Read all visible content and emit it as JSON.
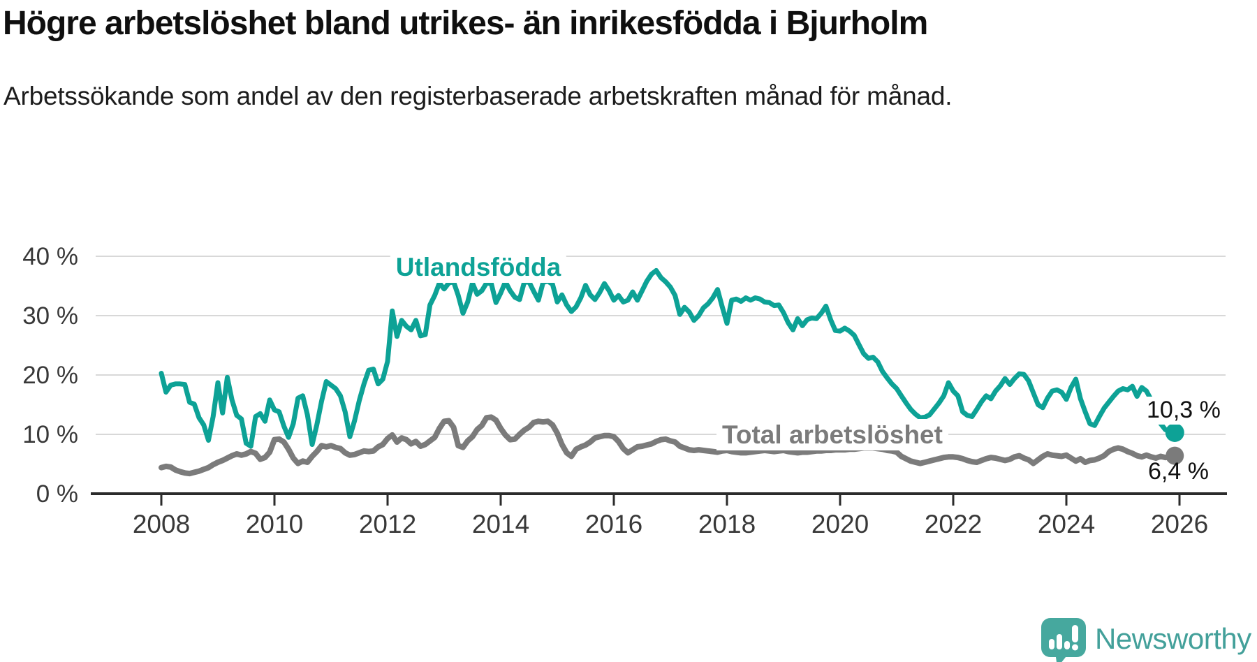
{
  "title": "Högre arbetslöshet bland utrikes- än inrikesfödda i Bjurholm",
  "subtitle": "Arbetssökande som andel av den registerbaserade arbetskraften månad för månad.",
  "logo": {
    "text": "Newsworthy"
  },
  "colors": {
    "teal": "#0da296",
    "gray": "#7b7b7b",
    "grid": "#d8d8d8",
    "axis": "#2b2b2b",
    "tick_text": "#383838",
    "title": "#0f0f0f",
    "subtitle": "#1c1c1c",
    "value_text": "#111111",
    "logo_teal": "#46a89e",
    "background": "#ffffff"
  },
  "chart_data": {
    "type": "line",
    "title": "Högre arbetslöshet bland utrikes- än inrikesfödda i Bjurholm",
    "subtitle": "Arbetssökande som andel av den registerbaserade arbetskraften månad för månad.",
    "xlabel": "",
    "ylabel": "",
    "xlim": [
      2006.8,
      2026.8
    ],
    "ylim": [
      0,
      42
    ],
    "grid": true,
    "legend": "inline-labels",
    "x_ticks": [
      {
        "value": 2008,
        "label": "2008"
      },
      {
        "value": 2010,
        "label": "2010"
      },
      {
        "value": 2012,
        "label": "2012"
      },
      {
        "value": 2014,
        "label": "2014"
      },
      {
        "value": 2016,
        "label": "2016"
      },
      {
        "value": 2018,
        "label": "2018"
      },
      {
        "value": 2020,
        "label": "2020"
      },
      {
        "value": 2022,
        "label": "2022"
      },
      {
        "value": 2024,
        "label": "2024"
      },
      {
        "value": 2026,
        "label": "2026"
      }
    ],
    "y_ticks": [
      {
        "value": 0,
        "label": "0 %"
      },
      {
        "value": 10,
        "label": "10 %"
      },
      {
        "value": 20,
        "label": "20 %"
      },
      {
        "value": 30,
        "label": "30 %"
      },
      {
        "value": 40,
        "label": "40 %"
      }
    ],
    "series": [
      {
        "name": "Utlandsfödda",
        "color": "#0da296",
        "end_label": "10,3 %",
        "end_value": 10.3,
        "start_year": 2008.0,
        "step_years": 0.083333,
        "values": [
          20.3,
          17.1,
          18.3,
          18.5,
          18.5,
          18.4,
          15.4,
          15.1,
          12.8,
          11.6,
          9.0,
          13.0,
          18.7,
          13.6,
          19.6,
          15.8,
          13.2,
          12.6,
          8.5,
          8.0,
          13.0,
          13.5,
          12.2,
          15.8,
          14.1,
          13.8,
          11.4,
          9.5,
          11.8,
          16.1,
          16.5,
          13.3,
          8.3,
          11.6,
          15.6,
          18.9,
          18.3,
          17.7,
          16.5,
          13.8,
          9.6,
          12.3,
          15.7,
          18.5,
          20.8,
          21.0,
          18.5,
          19.3,
          22.3,
          30.8,
          26.5,
          29.2,
          28.2,
          27.6,
          29.2,
          26.6,
          26.8,
          31.8,
          33.4,
          35.5,
          34.5,
          35.5,
          35.7,
          33.4,
          30.4,
          32.3,
          35.5,
          33.6,
          34.2,
          35.5,
          35.4,
          32.2,
          33.8,
          35.7,
          34.2,
          33.1,
          32.7,
          35.6,
          35.7,
          34.1,
          32.6,
          35.6,
          35.8,
          35.3,
          32.3,
          33.5,
          31.8,
          30.7,
          31.5,
          33.0,
          35.1,
          33.5,
          32.7,
          33.9,
          35.4,
          34.2,
          32.6,
          33.4,
          32.3,
          32.6,
          34.0,
          32.6,
          34.2,
          35.8,
          37.0,
          37.6,
          36.4,
          35.7,
          34.8,
          33.4,
          30.2,
          31.4,
          30.6,
          29.2,
          30.0,
          31.3,
          32.0,
          33.0,
          34.4,
          31.5,
          28.7,
          32.6,
          32.8,
          32.4,
          33.0,
          32.6,
          33.0,
          32.8,
          32.3,
          32.2,
          31.7,
          31.8,
          30.5,
          28.8,
          27.6,
          29.5,
          28.3,
          29.3,
          29.6,
          29.5,
          30.4,
          31.6,
          29.3,
          27.5,
          27.4,
          27.9,
          27.4,
          26.7,
          25.1,
          23.6,
          22.8,
          23.0,
          22.2,
          20.6,
          19.5,
          18.5,
          17.7,
          16.5,
          15.3,
          14.2,
          13.4,
          12.8,
          12.9,
          13.3,
          14.3,
          15.3,
          16.5,
          18.7,
          17.3,
          16.5,
          13.8,
          13.2,
          13.0,
          14.2,
          15.5,
          16.5,
          16.0,
          17.3,
          18.2,
          19.4,
          18.4,
          19.4,
          20.2,
          20.1,
          19.0,
          17.0,
          15.0,
          14.5,
          16.1,
          17.3,
          17.5,
          17.1,
          15.9,
          17.9,
          19.3,
          16.0,
          13.8,
          11.8,
          11.5,
          13.0,
          14.4,
          15.4,
          16.4,
          17.3,
          17.7,
          17.5,
          18.1,
          16.4,
          17.9,
          17.3,
          15.8,
          13.8,
          11.8,
          10.8,
          10.5,
          10.3
        ]
      },
      {
        "name": "Total arbetslöshet",
        "color": "#7b7b7b",
        "end_label": "6,4 %",
        "end_value": 6.4,
        "start_year": 2008.0,
        "step_years": 0.083333,
        "values": [
          4.4,
          4.6,
          4.5,
          4.0,
          3.7,
          3.5,
          3.4,
          3.6,
          3.8,
          4.1,
          4.4,
          4.9,
          5.3,
          5.6,
          6.0,
          6.4,
          6.7,
          6.5,
          6.7,
          7.1,
          6.8,
          5.8,
          6.1,
          7.0,
          9.1,
          9.2,
          8.7,
          7.5,
          6.0,
          5.1,
          5.5,
          5.3,
          6.3,
          7.1,
          8.1,
          7.9,
          8.1,
          7.8,
          7.6,
          6.9,
          6.5,
          6.6,
          6.9,
          7.2,
          7.1,
          7.2,
          7.9,
          8.3,
          9.3,
          9.9,
          8.7,
          9.4,
          9.1,
          8.4,
          8.8,
          8.0,
          8.3,
          8.9,
          9.5,
          11.0,
          12.2,
          12.3,
          11.2,
          8.1,
          7.8,
          8.9,
          9.6,
          10.8,
          11.5,
          12.8,
          12.9,
          12.4,
          11.0,
          9.9,
          9.1,
          9.2,
          10.0,
          10.7,
          11.2,
          12.0,
          12.2,
          12.1,
          12.2,
          11.6,
          10.2,
          8.3,
          6.9,
          6.3,
          7.5,
          7.9,
          8.2,
          8.7,
          9.4,
          9.6,
          9.8,
          9.8,
          9.6,
          8.8,
          7.6,
          6.9,
          7.4,
          7.9,
          8.0,
          8.2,
          8.4,
          8.8,
          9.1,
          9.2,
          8.9,
          8.7,
          8.0,
          7.7,
          7.4,
          7.3,
          7.4,
          7.3,
          7.2,
          7.1,
          7.0,
          7.2,
          7.3,
          7.1,
          7.0,
          6.9,
          6.9,
          7.0,
          7.1,
          7.2,
          7.3,
          7.2,
          7.1,
          7.2,
          7.3,
          7.1,
          7.0,
          6.9,
          7.0,
          7.0,
          7.1,
          7.2,
          7.2,
          7.3,
          7.3,
          7.4,
          7.4,
          7.4,
          7.5,
          7.5,
          7.6,
          7.7,
          7.7,
          7.7,
          7.6,
          7.5,
          7.3,
          7.2,
          7.0,
          6.3,
          5.9,
          5.5,
          5.3,
          5.1,
          5.3,
          5.5,
          5.7,
          5.9,
          6.1,
          6.2,
          6.2,
          6.1,
          5.9,
          5.6,
          5.4,
          5.3,
          5.6,
          5.9,
          6.1,
          6.0,
          5.8,
          5.6,
          5.8,
          6.2,
          6.4,
          6.0,
          5.7,
          5.1,
          5.7,
          6.3,
          6.7,
          6.5,
          6.4,
          6.3,
          6.5,
          6.0,
          5.5,
          5.9,
          5.3,
          5.6,
          5.7,
          6.0,
          6.4,
          7.1,
          7.5,
          7.7,
          7.5,
          7.1,
          6.8,
          6.4,
          6.2,
          6.5,
          6.2,
          6.0,
          6.3,
          6.1,
          6.2,
          6.4
        ]
      }
    ]
  }
}
